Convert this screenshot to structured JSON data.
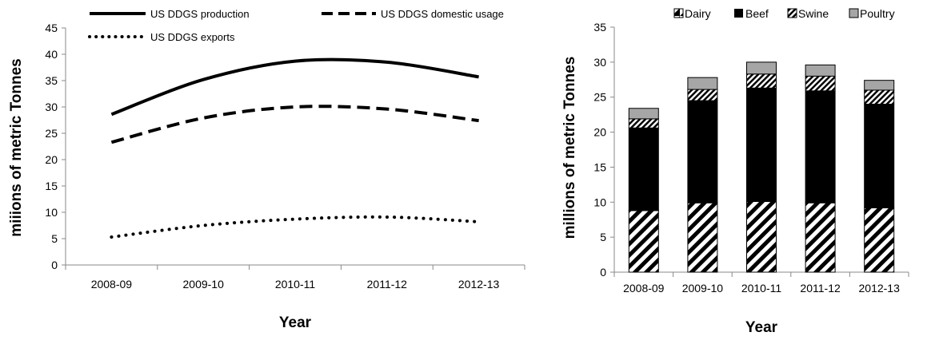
{
  "chart_data": [
    {
      "type": "line",
      "title": "",
      "xlabel": "Year",
      "ylabel": "miiions of metric Tonnes",
      "categories": [
        "2008-09",
        "2009-10",
        "2010-11",
        "2011-12",
        "2012-13"
      ],
      "ylim": [
        0,
        45
      ],
      "yticks": [
        "0",
        "5",
        "10",
        "15",
        "20",
        "25",
        "30",
        "35",
        "40",
        "45"
      ],
      "legend_position": "top",
      "grid": false,
      "series": [
        {
          "name": "US DDGS production",
          "style": "solid",
          "values": [
            28.6,
            35.2,
            38.7,
            38.5,
            35.7
          ]
        },
        {
          "name": "US DDGS domestic usage",
          "style": "dashed",
          "values": [
            23.3,
            27.9,
            30.0,
            29.6,
            27.4
          ]
        },
        {
          "name": "US DDGS exports",
          "style": "dotted",
          "values": [
            5.3,
            7.5,
            8.7,
            9.1,
            8.2
          ]
        }
      ]
    },
    {
      "type": "bar",
      "stacked": true,
      "title": "",
      "xlabel": "Year",
      "ylabel": "millions of metric Tonnes",
      "categories": [
        "2008-09",
        "2009-10",
        "2010-11",
        "2011-12",
        "2012-13"
      ],
      "ylim": [
        0,
        35
      ],
      "yticks": [
        "0",
        "5",
        "10",
        "15",
        "20",
        "25",
        "30",
        "35"
      ],
      "legend_position": "top",
      "grid": false,
      "series": [
        {
          "name": "Dairy",
          "fill": "diagonal-hatch",
          "values": [
            8.8,
            9.9,
            10.1,
            9.9,
            9.2
          ]
        },
        {
          "name": "Beef",
          "fill": "#000000",
          "values": [
            11.8,
            14.6,
            16.2,
            16.0,
            14.8
          ]
        },
        {
          "name": "Swine",
          "fill": "diagonal-hatch-dense",
          "values": [
            1.3,
            1.6,
            2.0,
            2.1,
            2.0
          ]
        },
        {
          "name": "Poultry",
          "fill": "#a6a6a6",
          "values": [
            1.5,
            1.7,
            1.7,
            1.6,
            1.4
          ]
        }
      ]
    }
  ]
}
